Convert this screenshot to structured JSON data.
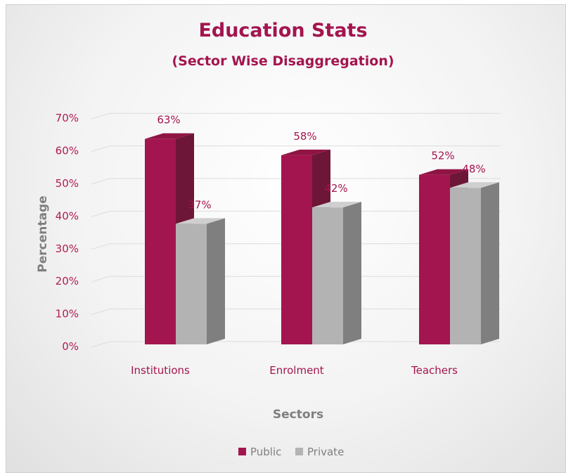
{
  "chart_data": {
    "type": "bar",
    "title": "Education Stats",
    "subtitle": "(Sector Wise Disaggregation)",
    "xlabel": "Sectors",
    "ylabel": "Percentage",
    "categories": [
      "Institutions",
      "Enrolment",
      "Teachers"
    ],
    "series": [
      {
        "name": "Public",
        "values": [
          63,
          58,
          52
        ],
        "labels": [
          "63%",
          "58%",
          "52%"
        ],
        "color": "#a3154f"
      },
      {
        "name": "Private",
        "values": [
          37,
          42,
          48
        ],
        "labels": [
          "37%",
          "42%",
          "48%"
        ],
        "color": "#b3b3b3"
      }
    ],
    "ylim": [
      0,
      70
    ],
    "yticks": [
      0,
      10,
      20,
      30,
      40,
      50,
      60,
      70
    ],
    "ytick_labels": [
      "0%",
      "10%",
      "20%",
      "30%",
      "40%",
      "50%",
      "60%",
      "70%"
    ],
    "grid": true,
    "legend": "bottom",
    "style": "3d-clustered-bar"
  }
}
